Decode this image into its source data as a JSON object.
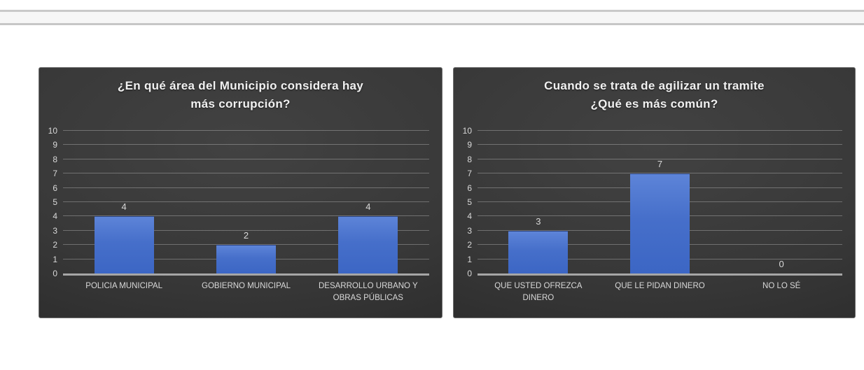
{
  "top_bar": {
    "strip_bg": "#f6f6f6",
    "divider_color": "#c9c9c9"
  },
  "colors": {
    "panel_bg_center": "#424242",
    "panel_bg_edge": "#232323",
    "bar_top": "#5d84d8",
    "bar_bottom": "#3c66c4",
    "grid_line": "#6f6f6f",
    "axis_line": "#a6a6a6",
    "title_text": "#f1f1f1",
    "label_text": "#d9d9d9"
  },
  "chart_data": [
    {
      "type": "bar",
      "title": "¿En qué área del Municipio considera hay más corrupción?",
      "title_lines": [
        "¿En qué área del Municipio considera hay",
        "más corrupción?"
      ],
      "categories": [
        "POLICIA MUNICIPAL",
        "GOBIERNO MUNICIPAL",
        "DESARROLLO URBANO Y OBRAS PÚBLICAS"
      ],
      "values": [
        4,
        2,
        4
      ],
      "data_labels": [
        "4",
        "2",
        "4"
      ],
      "xlabel": "",
      "ylabel": "",
      "ylim": [
        0,
        10
      ],
      "yticks": [
        0,
        1,
        2,
        3,
        4,
        5,
        6,
        7,
        8,
        9,
        10
      ],
      "grid": true,
      "legend": "none"
    },
    {
      "type": "bar",
      "title": "Cuando se trata de agilizar un tramite ¿Qué es más común?",
      "title_lines": [
        "Cuando se trata de agilizar un tramite",
        "¿Qué es más común?"
      ],
      "categories": [
        "QUE USTED OFREZCA DINERO",
        "QUE LE PIDAN DINERO",
        "NO LO SÉ"
      ],
      "values": [
        3,
        7,
        0
      ],
      "data_labels": [
        "3",
        "7",
        "0"
      ],
      "xlabel": "",
      "ylabel": "",
      "ylim": [
        0,
        10
      ],
      "yticks": [
        0,
        1,
        2,
        3,
        4,
        5,
        6,
        7,
        8,
        9,
        10
      ],
      "grid": true,
      "legend": "none"
    }
  ]
}
